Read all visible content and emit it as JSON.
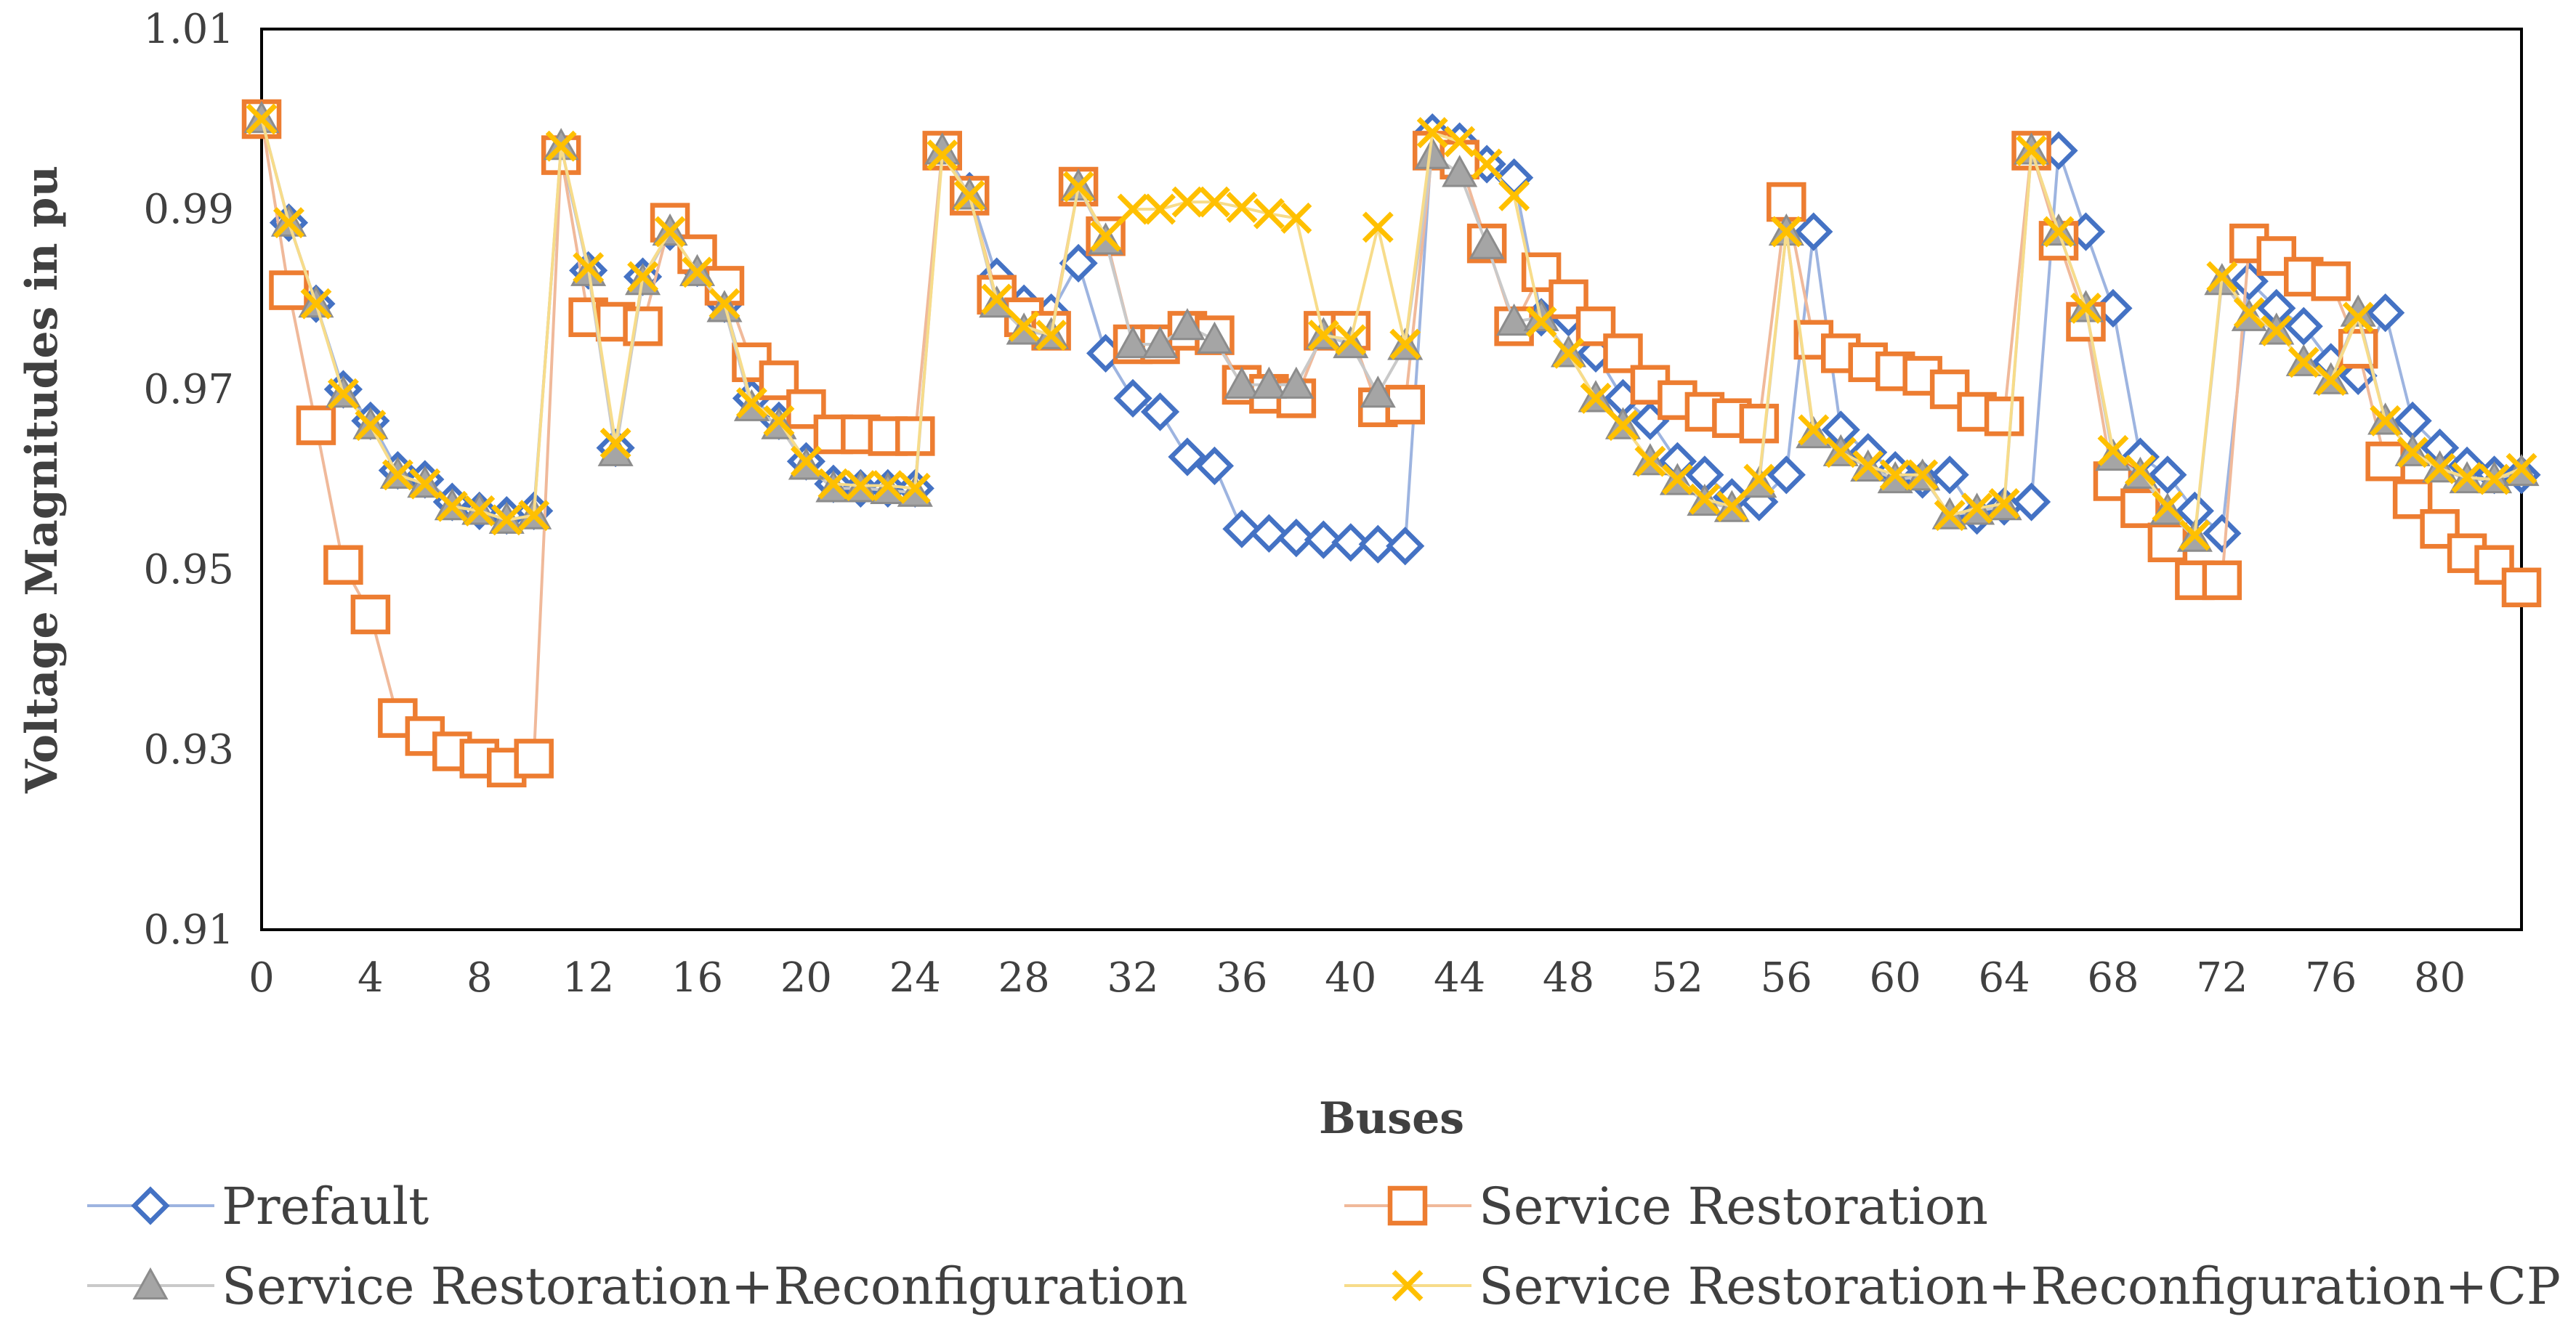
{
  "chart_data": {
    "type": "line",
    "title": "",
    "xlabel": "Buses",
    "ylabel": "Voltage Magnitudes in pu",
    "xlim": [
      0,
      83
    ],
    "ylim": [
      0.91,
      1.01
    ],
    "x_ticks": [
      0,
      4,
      8,
      12,
      16,
      20,
      24,
      28,
      32,
      36,
      40,
      44,
      48,
      52,
      56,
      60,
      64,
      68,
      72,
      76,
      80
    ],
    "y_ticks": [
      0.91,
      0.93,
      0.95,
      0.97,
      0.99,
      1.01
    ],
    "x_tick_labels": [
      "0",
      "4",
      "8",
      "12",
      "16",
      "20",
      "24",
      "28",
      "32",
      "36",
      "40",
      "44",
      "48",
      "52",
      "56",
      "60",
      "64",
      "68",
      "72",
      "76",
      "80"
    ],
    "y_tick_labels": [
      "0.91",
      "0.93",
      "0.95",
      "0.97",
      "0.99",
      "1.01"
    ],
    "grid": false,
    "legend_position": "bottom",
    "x": [
      0,
      1,
      2,
      3,
      4,
      5,
      6,
      7,
      8,
      9,
      10,
      11,
      12,
      13,
      14,
      15,
      16,
      17,
      18,
      19,
      20,
      21,
      22,
      23,
      24,
      25,
      26,
      27,
      28,
      29,
      30,
      31,
      32,
      33,
      34,
      35,
      36,
      37,
      38,
      39,
      40,
      41,
      42,
      43,
      44,
      45,
      46,
      47,
      48,
      49,
      50,
      51,
      52,
      53,
      54,
      55,
      56,
      57,
      58,
      59,
      60,
      61,
      62,
      63,
      64,
      65,
      66,
      67,
      68,
      69,
      70,
      71,
      72,
      73,
      74,
      75,
      76,
      77,
      78,
      79,
      80,
      81,
      82,
      83
    ],
    "series": [
      {
        "name": "Prefault",
        "marker": "diamond",
        "color": "#4472C4",
        "line_color": "#9DB4E0",
        "values": [
          1.0,
          0.9885,
          0.9795,
          0.97,
          0.9665,
          0.961,
          0.96,
          0.9575,
          0.9565,
          0.956,
          0.9565,
          0.9965,
          0.9832,
          0.9635,
          0.9825,
          0.9875,
          0.9835,
          0.9795,
          0.969,
          0.9665,
          0.962,
          0.9595,
          0.959,
          0.959,
          0.959,
          0.9965,
          0.992,
          0.9825,
          0.9795,
          0.9785,
          0.984,
          0.974,
          0.969,
          0.9675,
          0.9625,
          0.9615,
          0.9545,
          0.954,
          0.9535,
          0.9533,
          0.953,
          0.9528,
          0.9526,
          0.9985,
          0.9975,
          0.995,
          0.9935,
          0.978,
          0.978,
          0.974,
          0.969,
          0.9665,
          0.962,
          0.9605,
          0.958,
          0.9575,
          0.9605,
          0.9875,
          0.9655,
          0.963,
          0.961,
          0.96,
          0.9605,
          0.956,
          0.957,
          0.9575,
          0.9965,
          0.9875,
          0.979,
          0.9625,
          0.9605,
          0.9565,
          0.954,
          0.982,
          0.979,
          0.977,
          0.973,
          0.9715,
          0.9785,
          0.9665,
          0.9635,
          0.9615,
          0.9605,
          0.9605
        ]
      },
      {
        "name": "Service Restoration",
        "marker": "square",
        "color": "#ED7D31",
        "line_color": "#F0B99A",
        "values": [
          1.0,
          0.981,
          0.966,
          0.9505,
          0.945,
          0.9335,
          0.9315,
          0.9298,
          0.929,
          0.928,
          0.929,
          0.996,
          0.978,
          0.9775,
          0.977,
          0.9885,
          0.985,
          0.9815,
          0.973,
          0.971,
          0.9678,
          0.965,
          0.965,
          0.9648,
          0.9648,
          0.9965,
          0.9915,
          0.9805,
          0.978,
          0.9765,
          0.9925,
          0.987,
          0.975,
          0.975,
          0.9765,
          0.976,
          0.9705,
          0.9695,
          0.969,
          0.9765,
          0.9765,
          0.968,
          0.9683,
          0.9965,
          0.9955,
          0.9862,
          0.977,
          0.983,
          0.98,
          0.977,
          0.974,
          0.9705,
          0.9688,
          0.9675,
          0.9668,
          0.9662,
          0.9908,
          0.9755,
          0.974,
          0.973,
          0.972,
          0.9715,
          0.97,
          0.9675,
          0.967,
          0.9965,
          0.9865,
          0.9775,
          0.9598,
          0.9568,
          0.953,
          0.9488,
          0.9488,
          0.9862,
          0.9848,
          0.9825,
          0.982,
          0.9745,
          0.962,
          0.9578,
          0.9545,
          0.9518,
          0.9505,
          0.948
        ]
      },
      {
        "name": "Service Restoration+Reconfiguration",
        "marker": "triangle",
        "color": "#A5A5A5",
        "line_color": "#C9C9C9",
        "values": [
          1.0,
          0.9885,
          0.9795,
          0.9695,
          0.966,
          0.9605,
          0.9595,
          0.957,
          0.9565,
          0.9555,
          0.956,
          0.997,
          0.983,
          0.963,
          0.982,
          0.9875,
          0.983,
          0.979,
          0.968,
          0.966,
          0.9615,
          0.959,
          0.959,
          0.9588,
          0.9585,
          0.9965,
          0.9915,
          0.9795,
          0.9765,
          0.976,
          0.9925,
          0.9865,
          0.975,
          0.975,
          0.977,
          0.9755,
          0.9705,
          0.9705,
          0.9705,
          0.976,
          0.975,
          0.9695,
          0.9748,
          0.996,
          0.994,
          0.986,
          0.9775,
          0.978,
          0.974,
          0.969,
          0.966,
          0.962,
          0.9598,
          0.9575,
          0.9568,
          0.9595,
          0.9875,
          0.965,
          0.963,
          0.9613,
          0.96,
          0.9603,
          0.956,
          0.9565,
          0.957,
          0.9965,
          0.9875,
          0.979,
          0.9625,
          0.9605,
          0.9565,
          0.9535,
          0.982,
          0.978,
          0.9765,
          0.973,
          0.971,
          0.9785,
          0.9665,
          0.963,
          0.9612,
          0.96,
          0.96,
          0.9608
        ]
      },
      {
        "name": "Service Restoration+Reconfiguration+CP",
        "marker": "x",
        "color": "#FFC000",
        "line_color": "#F7DC8A",
        "values": [
          1.0,
          0.9885,
          0.9795,
          0.9695,
          0.966,
          0.9605,
          0.9595,
          0.957,
          0.9565,
          0.9555,
          0.956,
          0.997,
          0.9835,
          0.964,
          0.9825,
          0.9875,
          0.983,
          0.9795,
          0.9685,
          0.9665,
          0.962,
          0.9595,
          0.9593,
          0.9593,
          0.959,
          0.996,
          0.9915,
          0.98,
          0.977,
          0.976,
          0.9925,
          0.987,
          0.99,
          0.99,
          0.9908,
          0.9908,
          0.9902,
          0.9895,
          0.989,
          0.976,
          0.9755,
          0.988,
          0.975,
          0.9985,
          0.9975,
          0.995,
          0.9915,
          0.9775,
          0.974,
          0.969,
          0.966,
          0.962,
          0.96,
          0.9578,
          0.957,
          0.96,
          0.9875,
          0.9655,
          0.963,
          0.9615,
          0.9605,
          0.9605,
          0.956,
          0.9568,
          0.9573,
          0.9965,
          0.9875,
          0.979,
          0.9632,
          0.961,
          0.957,
          0.9538,
          0.9825,
          0.9785,
          0.9765,
          0.973,
          0.971,
          0.978,
          0.9665,
          0.963,
          0.9612,
          0.9602,
          0.96,
          0.9612
        ]
      }
    ]
  }
}
